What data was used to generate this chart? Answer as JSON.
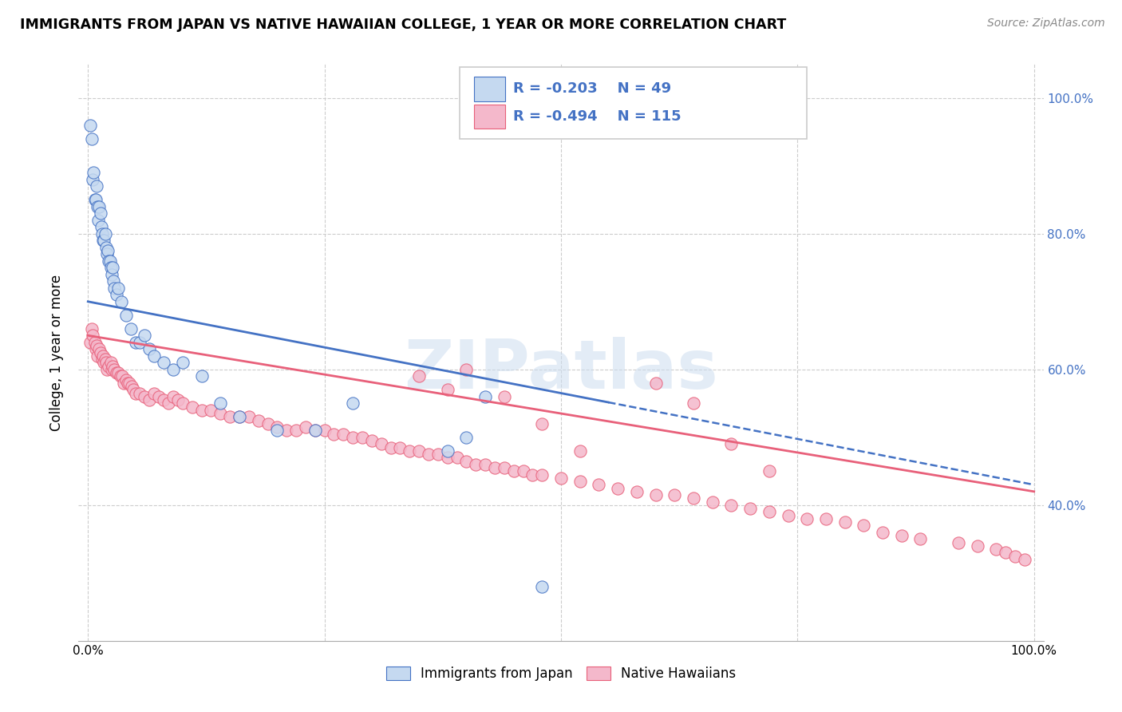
{
  "title": "IMMIGRANTS FROM JAPAN VS NATIVE HAWAIIAN COLLEGE, 1 YEAR OR MORE CORRELATION CHART",
  "source": "Source: ZipAtlas.com",
  "ylabel": "College, 1 year or more",
  "xlim": [
    -0.01,
    1.01
  ],
  "ylim": [
    0.2,
    1.05
  ],
  "ytick_vals": [
    0.4,
    0.6,
    0.8,
    1.0
  ],
  "ytick_labels": [
    "40.0%",
    "60.0%",
    "80.0%",
    "100.0%"
  ],
  "xtick_vals": [
    0.0,
    0.25,
    0.5,
    0.75,
    1.0
  ],
  "xtick_labels_show": [
    "0.0%",
    "",
    "",
    "",
    "100.0%"
  ],
  "watermark": "ZIPatlas",
  "legend_r_blue": "-0.203",
  "legend_n_blue": "49",
  "legend_r_pink": "-0.494",
  "legend_n_pink": "115",
  "legend_label_blue": "Immigrants from Japan",
  "legend_label_pink": "Native Hawaiians",
  "blue_face": "#c5d9f0",
  "blue_edge": "#4472c4",
  "blue_line": "#4472c4",
  "pink_face": "#f4b8cb",
  "pink_edge": "#e8607a",
  "pink_line": "#e8607a",
  "blue_x": [
    0.002,
    0.004,
    0.005,
    0.006,
    0.007,
    0.008,
    0.009,
    0.01,
    0.011,
    0.012,
    0.013,
    0.014,
    0.015,
    0.016,
    0.017,
    0.018,
    0.019,
    0.02,
    0.021,
    0.022,
    0.023,
    0.024,
    0.025,
    0.026,
    0.027,
    0.028,
    0.03,
    0.032,
    0.035,
    0.04,
    0.045,
    0.05,
    0.055,
    0.06,
    0.065,
    0.07,
    0.08,
    0.09,
    0.1,
    0.12,
    0.14,
    0.16,
    0.2,
    0.24,
    0.28,
    0.38,
    0.4,
    0.42,
    0.48
  ],
  "blue_y": [
    0.96,
    0.94,
    0.88,
    0.89,
    0.85,
    0.85,
    0.87,
    0.84,
    0.82,
    0.84,
    0.83,
    0.81,
    0.8,
    0.79,
    0.79,
    0.8,
    0.78,
    0.77,
    0.775,
    0.76,
    0.76,
    0.75,
    0.74,
    0.75,
    0.73,
    0.72,
    0.71,
    0.72,
    0.7,
    0.68,
    0.66,
    0.64,
    0.64,
    0.65,
    0.63,
    0.62,
    0.61,
    0.6,
    0.61,
    0.59,
    0.55,
    0.53,
    0.51,
    0.51,
    0.55,
    0.48,
    0.5,
    0.56,
    0.28
  ],
  "pink_x": [
    0.002,
    0.004,
    0.005,
    0.007,
    0.008,
    0.009,
    0.01,
    0.012,
    0.013,
    0.015,
    0.016,
    0.017,
    0.018,
    0.019,
    0.02,
    0.022,
    0.024,
    0.025,
    0.026,
    0.028,
    0.03,
    0.032,
    0.034,
    0.036,
    0.038,
    0.04,
    0.042,
    0.044,
    0.046,
    0.048,
    0.05,
    0.055,
    0.06,
    0.065,
    0.07,
    0.075,
    0.08,
    0.085,
    0.09,
    0.095,
    0.1,
    0.11,
    0.12,
    0.13,
    0.14,
    0.15,
    0.16,
    0.17,
    0.18,
    0.19,
    0.2,
    0.21,
    0.22,
    0.23,
    0.24,
    0.25,
    0.26,
    0.27,
    0.28,
    0.29,
    0.3,
    0.31,
    0.32,
    0.33,
    0.34,
    0.35,
    0.36,
    0.37,
    0.38,
    0.39,
    0.4,
    0.41,
    0.42,
    0.43,
    0.44,
    0.45,
    0.46,
    0.47,
    0.48,
    0.5,
    0.52,
    0.54,
    0.56,
    0.58,
    0.6,
    0.62,
    0.64,
    0.66,
    0.68,
    0.7,
    0.72,
    0.74,
    0.76,
    0.78,
    0.8,
    0.82,
    0.84,
    0.86,
    0.88,
    0.92,
    0.94,
    0.96,
    0.97,
    0.98,
    0.99,
    0.6,
    0.64,
    0.68,
    0.72,
    0.4,
    0.44,
    0.48,
    0.52,
    0.35,
    0.38
  ],
  "pink_y": [
    0.64,
    0.66,
    0.65,
    0.64,
    0.63,
    0.635,
    0.62,
    0.63,
    0.625,
    0.615,
    0.62,
    0.61,
    0.615,
    0.61,
    0.6,
    0.605,
    0.61,
    0.6,
    0.605,
    0.6,
    0.595,
    0.595,
    0.59,
    0.59,
    0.58,
    0.585,
    0.58,
    0.58,
    0.575,
    0.57,
    0.565,
    0.565,
    0.56,
    0.555,
    0.565,
    0.56,
    0.555,
    0.55,
    0.56,
    0.555,
    0.55,
    0.545,
    0.54,
    0.54,
    0.535,
    0.53,
    0.53,
    0.53,
    0.525,
    0.52,
    0.515,
    0.51,
    0.51,
    0.515,
    0.51,
    0.51,
    0.505,
    0.505,
    0.5,
    0.5,
    0.495,
    0.49,
    0.485,
    0.485,
    0.48,
    0.48,
    0.475,
    0.475,
    0.47,
    0.47,
    0.465,
    0.46,
    0.46,
    0.455,
    0.455,
    0.45,
    0.45,
    0.445,
    0.445,
    0.44,
    0.435,
    0.43,
    0.425,
    0.42,
    0.415,
    0.415,
    0.41,
    0.405,
    0.4,
    0.395,
    0.39,
    0.385,
    0.38,
    0.38,
    0.375,
    0.37,
    0.36,
    0.355,
    0.35,
    0.345,
    0.34,
    0.335,
    0.33,
    0.325,
    0.32,
    0.58,
    0.55,
    0.49,
    0.45,
    0.6,
    0.56,
    0.52,
    0.48,
    0.59,
    0.57
  ],
  "blue_line_x0": 0.0,
  "blue_line_y0": 0.7,
  "blue_line_x1": 1.0,
  "blue_line_y1": 0.43,
  "pink_line_x0": 0.0,
  "pink_line_y0": 0.65,
  "pink_line_x1": 1.0,
  "pink_line_y1": 0.42
}
